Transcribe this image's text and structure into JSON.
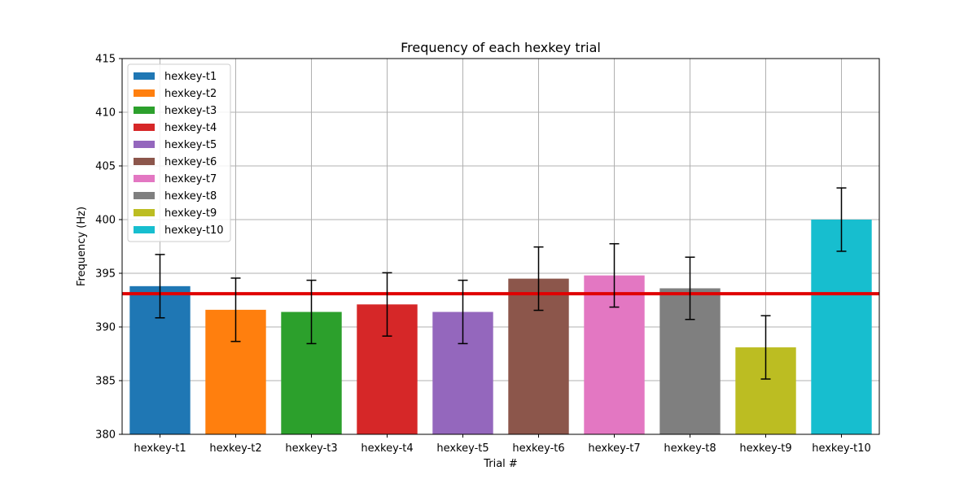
{
  "chart_data": {
    "type": "bar",
    "title": "Frequency of each hexkey trial",
    "xlabel": "Trial #",
    "ylabel": "Frequency (Hz)",
    "ylim": [
      380,
      415
    ],
    "yticks": [
      380,
      385,
      390,
      395,
      400,
      405,
      410,
      415
    ],
    "grid": true,
    "legend_placement": "top-left",
    "categories": [
      "hexkey-t1",
      "hexkey-t2",
      "hexkey-t3",
      "hexkey-t4",
      "hexkey-t5",
      "hexkey-t6",
      "hexkey-t7",
      "hexkey-t8",
      "hexkey-t9",
      "hexkey-t10"
    ],
    "values": [
      393.8,
      391.6,
      391.4,
      392.1,
      391.4,
      394.5,
      394.8,
      393.6,
      388.1,
      400.0
    ],
    "errors": [
      2.95,
      2.95,
      2.95,
      2.95,
      2.95,
      2.95,
      2.95,
      2.9,
      2.95,
      2.95
    ],
    "colors": [
      "#1f77b4",
      "#ff7f0e",
      "#2ca02c",
      "#d62728",
      "#9467bd",
      "#8c564b",
      "#e377c2",
      "#7f7f7f",
      "#bcbd22",
      "#17becf"
    ],
    "reference_line": {
      "y": 393.1,
      "color": "#e00000"
    }
  }
}
